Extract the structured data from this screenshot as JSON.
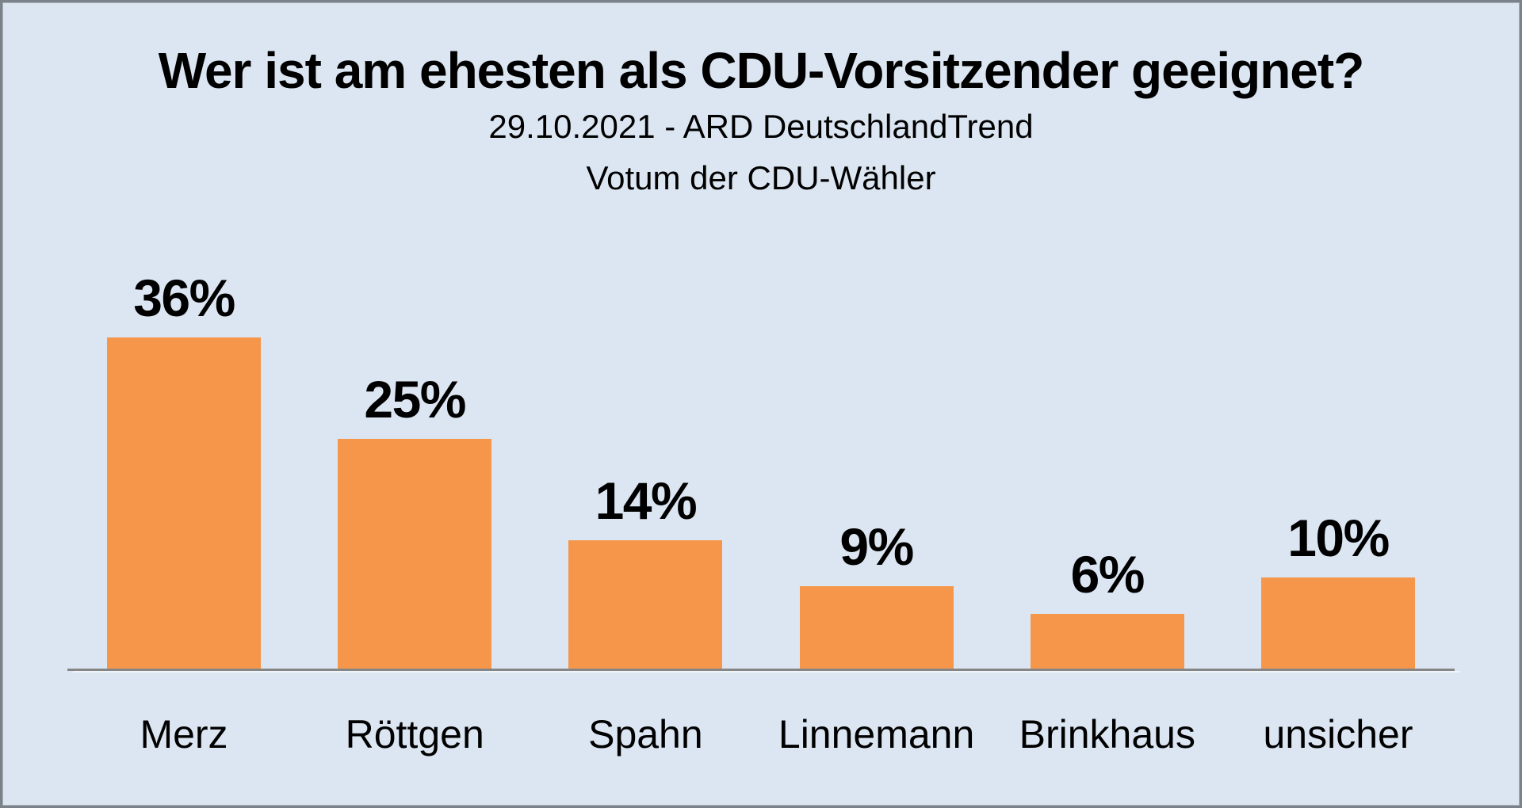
{
  "page": {
    "background_color": "#DCE6F2",
    "border_color": "#7C828A"
  },
  "chart_data": {
    "type": "bar",
    "title": "Wer ist am ehesten als CDU-Vorsitzender geeignet?",
    "subtitle_line1": "29.10.2021 - ARD DeutschlandTrend",
    "subtitle_line2": "Votum der CDU-Wähler",
    "categories": [
      "Merz",
      "Röttgen",
      "Spahn",
      "Linnemann",
      "Brinkhaus",
      "unsicher"
    ],
    "values": [
      36,
      25,
      14,
      9,
      6,
      10
    ],
    "data_labels": [
      "36%",
      "25%",
      "14%",
      "9%",
      "6%",
      "10%"
    ],
    "unit": "%",
    "ylim": [
      0,
      38
    ],
    "grid": false,
    "legend": false,
    "y_axis_visible": false,
    "x_axis_line": true,
    "bar_color": "#F6964A",
    "axis_line_color": "#868686",
    "label_color": "#000000",
    "background_color": "#DCE6F2"
  }
}
